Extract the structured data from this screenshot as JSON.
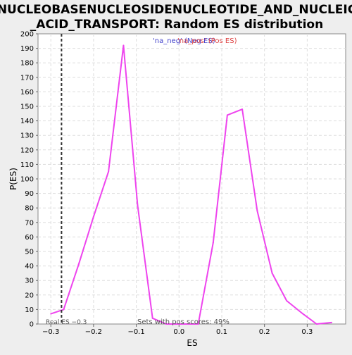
{
  "chart_data": {
    "type": "line",
    "title_lines": [
      "NUCLEOBASENUCLEOSIDENUCLEOTIDE_AND_NUCLEIC",
      "_ACID_TRANSPORT: Random ES distribution"
    ],
    "xlabel": "ES",
    "ylabel": "P(ES)",
    "xlim": [
      -0.33,
      0.39
    ],
    "ylim": [
      0,
      200
    ],
    "x_ticks": [
      -0.3,
      -0.2,
      -0.1,
      0,
      0.1,
      0.2,
      0.3
    ],
    "x_tick_labels": [
      "−0.3",
      "−0.2",
      "−0.1",
      "0.0",
      "0.1",
      "0.2",
      "0.3"
    ],
    "y_ticks": [
      0,
      10,
      20,
      30,
      40,
      50,
      60,
      70,
      80,
      90,
      100,
      110,
      120,
      130,
      140,
      150,
      160,
      170,
      180,
      190,
      200
    ],
    "grid": true,
    "legend": {
      "neg_label": "'na_neg' (Neg ES)",
      "pos_label": "'na_pos' (Pos ES)",
      "neg_color": "#4444cc",
      "pos_color": "#dd4444"
    },
    "series": [
      {
        "color": "#ee44ee",
        "x": [
          -0.3,
          -0.27,
          -0.235,
          -0.2,
          -0.165,
          -0.13,
          -0.097,
          -0.062,
          -0.03,
          0.0,
          0.045,
          0.08,
          0.113,
          0.148,
          0.183,
          0.218,
          0.252,
          0.29,
          0.322,
          0.357
        ],
        "y": [
          7,
          10,
          41,
          74,
          105,
          192,
          82,
          4,
          0,
          0,
          0,
          56,
          144,
          148,
          78,
          35,
          16,
          7,
          0,
          1
        ]
      }
    ],
    "real_es": {
      "value": -0.275,
      "label": "Real ES −0.3"
    },
    "annotation": "Sets with pos scores: 49%"
  }
}
